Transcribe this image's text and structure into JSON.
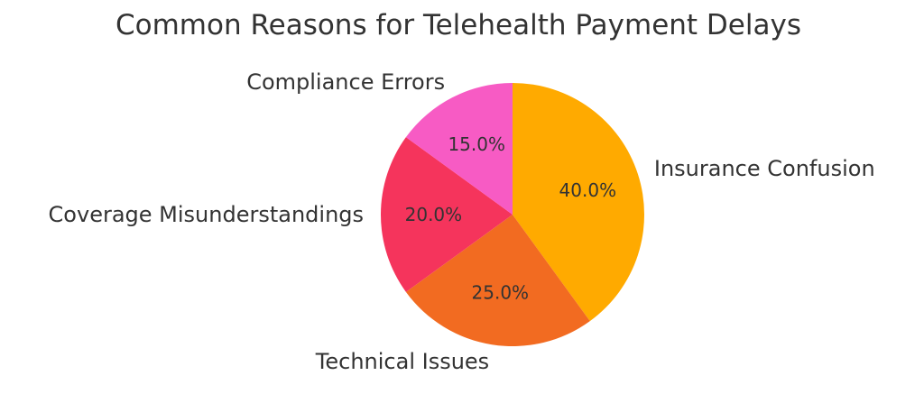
{
  "chart_data": {
    "type": "pie",
    "title": "Common Reasons for Telehealth Payment Delays",
    "slices": [
      {
        "label": "Insurance Confusion",
        "value": 40.0,
        "pct_label": "40.0%",
        "color": "#FFAA00"
      },
      {
        "label": "Technical Issues",
        "value": 25.0,
        "pct_label": "25.0%",
        "color": "#F26B21"
      },
      {
        "label": "Coverage Misunderstandings",
        "value": 20.0,
        "pct_label": "20.0%",
        "color": "#F5345C"
      },
      {
        "label": "Compliance Errors",
        "value": 15.0,
        "pct_label": "15.0%",
        "color": "#F75BC4"
      }
    ],
    "start_angle": "top",
    "direction": "clockwise",
    "legend": "none"
  }
}
